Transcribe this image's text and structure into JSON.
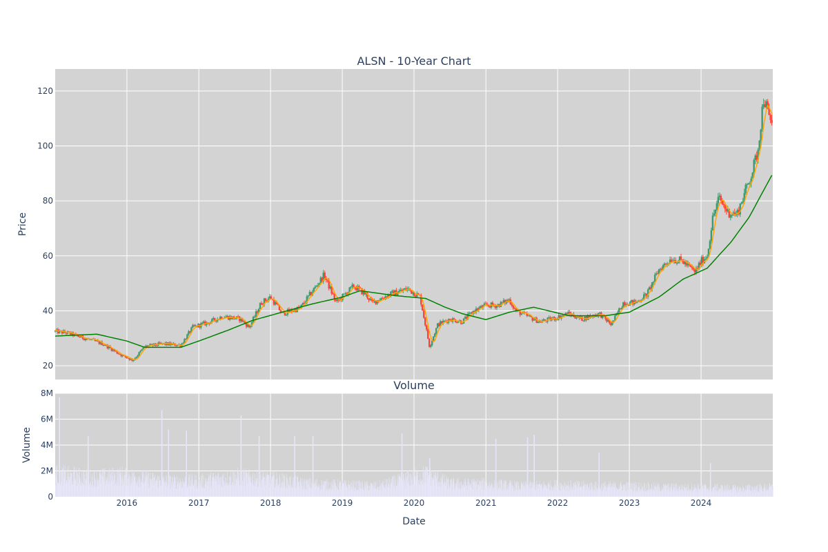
{
  "chart_data": [
    {
      "type": "candlestick",
      "title": "ALSN - 10-Year Chart",
      "xlabel": "",
      "ylabel": "Price",
      "xlim": [
        "2015-01-01",
        "2024-12-31"
      ],
      "ylim": [
        15,
        128
      ],
      "x_ticks": [
        "2016",
        "2017",
        "2018",
        "2019",
        "2020",
        "2021",
        "2022",
        "2023",
        "2024"
      ],
      "y_ticks": [
        20,
        40,
        60,
        80,
        100,
        120
      ],
      "grid": true,
      "colors": {
        "increasing": "#3d9970",
        "decreasing": "#ff4136",
        "short_ma": "#ffa500",
        "long_ma": "#008000",
        "plot_bg": "#d3d3d3",
        "grid": "#ffffff"
      },
      "price_anchors": [
        [
          "2015-01-01",
          32.5
        ],
        [
          "2015-03-01",
          32
        ],
        [
          "2015-06-01",
          30
        ],
        [
          "2015-09-01",
          28
        ],
        [
          "2015-12-01",
          24
        ],
        [
          "2016-02-01",
          22
        ],
        [
          "2016-04-01",
          27
        ],
        [
          "2016-07-01",
          28
        ],
        [
          "2016-10-01",
          27.5
        ],
        [
          "2016-12-01",
          34
        ],
        [
          "2017-03-01",
          36
        ],
        [
          "2017-05-01",
          38
        ],
        [
          "2017-08-01",
          37
        ],
        [
          "2017-09-15",
          34
        ],
        [
          "2017-11-15",
          43
        ],
        [
          "2018-01-01",
          45
        ],
        [
          "2018-03-01",
          39
        ],
        [
          "2018-06-01",
          41
        ],
        [
          "2018-08-01",
          47
        ],
        [
          "2018-10-01",
          53
        ],
        [
          "2018-12-01",
          43
        ],
        [
          "2019-03-01",
          49
        ],
        [
          "2019-05-01",
          46
        ],
        [
          "2019-06-01",
          43
        ],
        [
          "2019-09-01",
          46
        ],
        [
          "2019-12-01",
          48
        ],
        [
          "2020-02-01",
          45
        ],
        [
          "2020-03-20",
          27
        ],
        [
          "2020-05-01",
          35
        ],
        [
          "2020-07-01",
          37
        ],
        [
          "2020-09-01",
          36
        ],
        [
          "2020-11-01",
          40
        ],
        [
          "2021-01-01",
          42
        ],
        [
          "2021-03-01",
          42
        ],
        [
          "2021-05-01",
          44
        ],
        [
          "2021-06-01",
          40
        ],
        [
          "2021-08-01",
          38
        ],
        [
          "2021-10-01",
          36
        ],
        [
          "2021-12-01",
          37
        ],
        [
          "2022-03-01",
          39
        ],
        [
          "2022-05-01",
          37
        ],
        [
          "2022-08-01",
          39
        ],
        [
          "2022-10-01",
          35
        ],
        [
          "2022-12-01",
          43
        ],
        [
          "2023-02-01",
          43
        ],
        [
          "2023-04-01",
          46
        ],
        [
          "2023-06-01",
          55
        ],
        [
          "2023-08-01",
          59
        ],
        [
          "2023-10-01",
          58
        ],
        [
          "2023-12-01",
          54
        ],
        [
          "2024-01-01",
          58
        ],
        [
          "2024-02-01",
          60
        ],
        [
          "2024-03-01",
          74
        ],
        [
          "2024-04-01",
          81
        ],
        [
          "2024-05-15",
          76
        ],
        [
          "2024-07-01",
          75
        ],
        [
          "2024-08-15",
          84
        ],
        [
          "2024-09-15",
          90
        ],
        [
          "2024-10-15",
          98
        ],
        [
          "2024-11-15",
          118
        ],
        [
          "2024-12-15",
          109
        ]
      ],
      "long_ma_anchors": [
        [
          "2015-01-01",
          30.8
        ],
        [
          "2015-08-01",
          31.5
        ],
        [
          "2016-01-01",
          29
        ],
        [
          "2016-04-01",
          26.7
        ],
        [
          "2016-10-01",
          26.7
        ],
        [
          "2017-01-01",
          29
        ],
        [
          "2017-06-01",
          33
        ],
        [
          "2017-10-01",
          36.5
        ],
        [
          "2018-03-01",
          39.5
        ],
        [
          "2018-08-01",
          42.5
        ],
        [
          "2019-01-01",
          45
        ],
        [
          "2019-04-01",
          47.3
        ],
        [
          "2019-10-01",
          45.5
        ],
        [
          "2020-03-01",
          44.5
        ],
        [
          "2020-06-01",
          41.5
        ],
        [
          "2020-09-01",
          39
        ],
        [
          "2021-01-01",
          36.8
        ],
        [
          "2021-05-01",
          39.5
        ],
        [
          "2021-09-01",
          41.3
        ],
        [
          "2022-03-01",
          38.2
        ],
        [
          "2022-09-01",
          38.2
        ],
        [
          "2023-01-01",
          39.5
        ],
        [
          "2023-06-01",
          45
        ],
        [
          "2023-10-01",
          51.5
        ],
        [
          "2024-02-01",
          55.5
        ],
        [
          "2024-06-01",
          65
        ],
        [
          "2024-09-01",
          74
        ],
        [
          "2024-12-31",
          90
        ]
      ]
    },
    {
      "type": "bar",
      "title": "Volume",
      "xlabel": "Date",
      "ylabel": "Volume",
      "ylim": [
        0,
        8000000
      ],
      "y_ticks": [
        "0",
        "2M",
        "4M",
        "6M",
        "8M"
      ],
      "x_ticks": [
        "2016",
        "2017",
        "2018",
        "2019",
        "2020",
        "2021",
        "2022",
        "2023",
        "2024"
      ],
      "bar_color": "#e6e6fa",
      "volume_levels": [
        [
          "2015-01-01",
          1900000
        ],
        [
          "2015-07-01",
          1600000
        ],
        [
          "2016-01-01",
          1800000
        ],
        [
          "2016-07-01",
          1300000
        ],
        [
          "2017-01-01",
          1300000
        ],
        [
          "2017-07-01",
          1700000
        ],
        [
          "2018-01-01",
          1500000
        ],
        [
          "2018-07-01",
          1100000
        ],
        [
          "2019-01-01",
          1000000
        ],
        [
          "2019-07-01",
          900000
        ],
        [
          "2020-03-01",
          1900000
        ],
        [
          "2020-07-01",
          1100000
        ],
        [
          "2021-01-01",
          1100000
        ],
        [
          "2021-07-01",
          900000
        ],
        [
          "2022-01-01",
          1000000
        ],
        [
          "2022-07-01",
          900000
        ],
        [
          "2023-01-01",
          900000
        ],
        [
          "2023-07-01",
          800000
        ],
        [
          "2024-01-01",
          800000
        ],
        [
          "2024-07-01",
          700000
        ],
        [
          "2024-12-31",
          800000
        ]
      ],
      "volume_spikes": [
        [
          "2015-01-20",
          7700000
        ],
        [
          "2015-06-15",
          4700000
        ],
        [
          "2016-06-24",
          6700000
        ],
        [
          "2016-07-28",
          5200000
        ],
        [
          "2016-10-27",
          5100000
        ],
        [
          "2017-08-01",
          6300000
        ],
        [
          "2017-11-01",
          4700000
        ],
        [
          "2018-05-01",
          4700000
        ],
        [
          "2018-08-02",
          4700000
        ],
        [
          "2019-10-29",
          4900000
        ],
        [
          "2020-03-18",
          3000000
        ],
        [
          "2021-02-18",
          4500000
        ],
        [
          "2021-07-29",
          4600000
        ],
        [
          "2021-09-01",
          4800000
        ],
        [
          "2022-07-28",
          3400000
        ],
        [
          "2024-02-15",
          2600000
        ]
      ]
    }
  ]
}
